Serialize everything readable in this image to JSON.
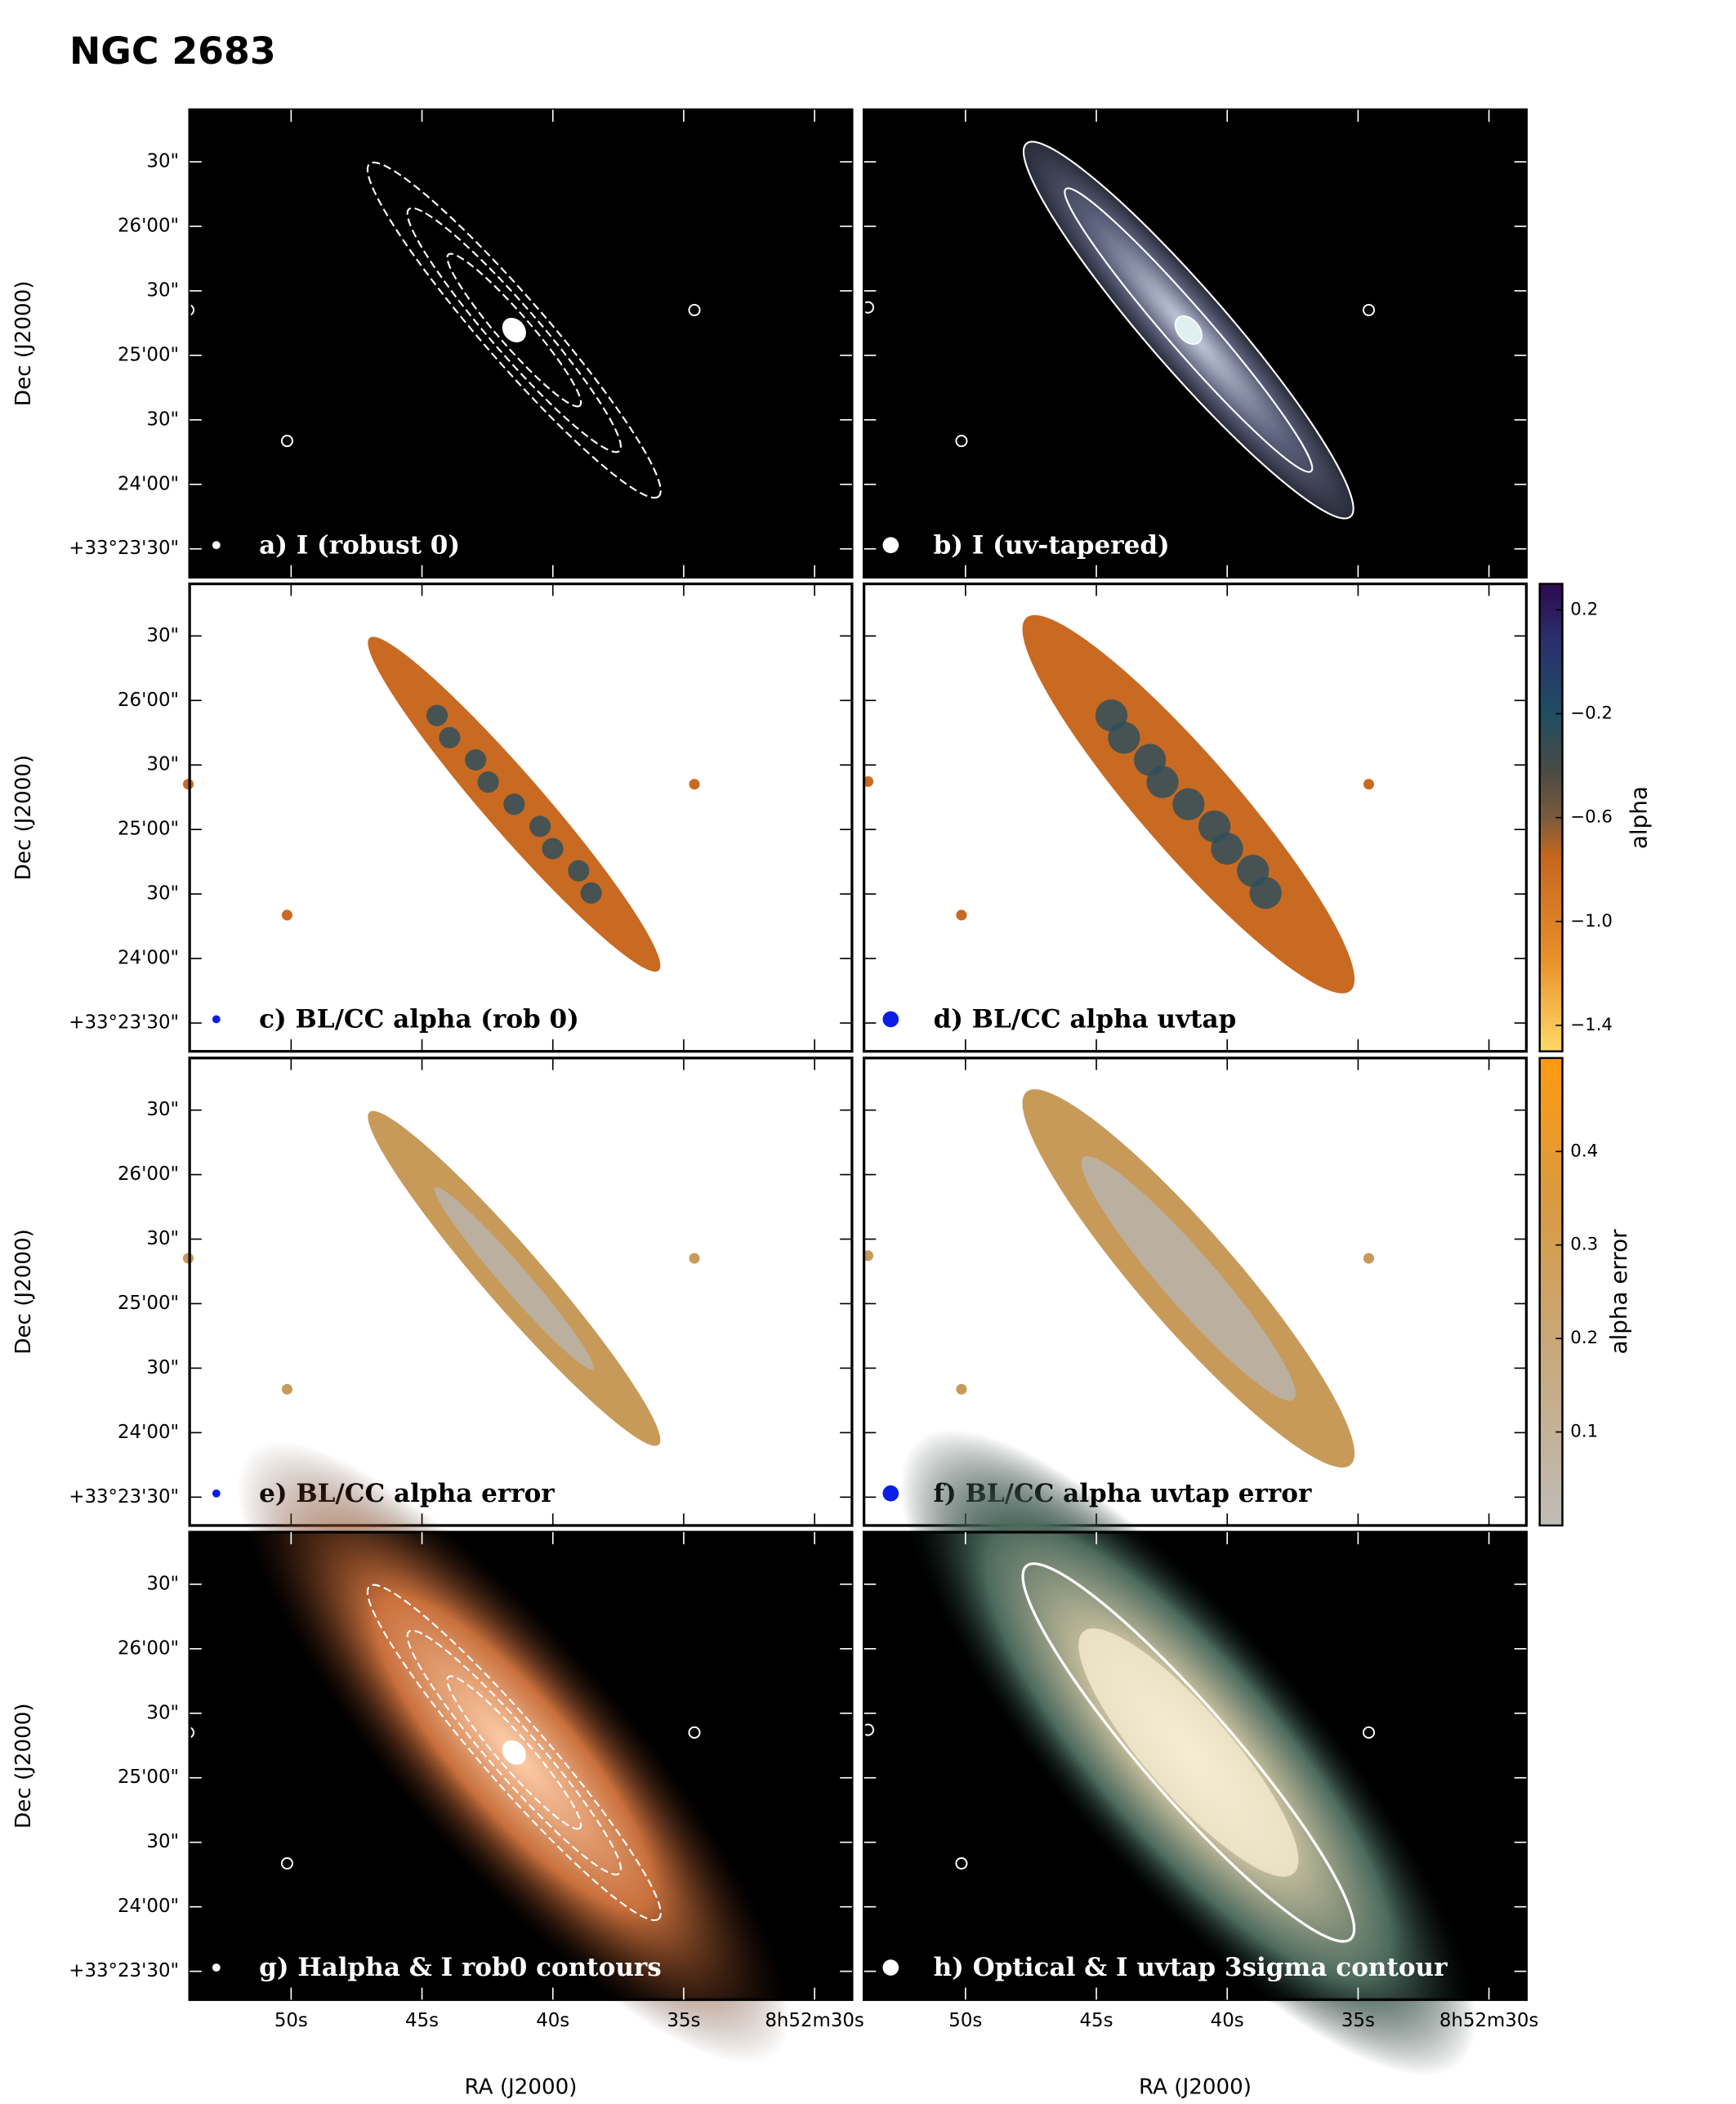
{
  "title": "NGC 2683",
  "y_axis_label": "Dec (J2000)",
  "x_axis_label": "RA (J2000)",
  "yticks": [
    "30\"",
    "26'00\"",
    "30\"",
    "25'00\"",
    "30\"",
    "24'00\"",
    "+33°23'30\""
  ],
  "xticks": [
    "50s",
    "45s",
    "40s",
    "35s",
    "8h52m30s"
  ],
  "panels": [
    {
      "label": "a) I (robust 0)"
    },
    {
      "label": "b) I (uv-tapered)"
    },
    {
      "label": "c) BL/CC alpha (rob 0)"
    },
    {
      "label": "d) BL/CC alpha uvtap"
    },
    {
      "label": "e)  BL/CC alpha error"
    },
    {
      "label": "f) BL/CC alpha uvtap error"
    },
    {
      "label": "g) Halpha & I rob0 contours"
    },
    {
      "label": "h) Optical & I uvtap 3sigma contour"
    }
  ],
  "colorbars": [
    {
      "label": "alpha",
      "lim": [
        -1.5,
        0.3
      ],
      "ticks": [
        {
          "value": 0.2,
          "label": "0.2"
        },
        {
          "value": -0.2,
          "label": "−0.2"
        },
        {
          "value": -0.6,
          "label": "−0.6"
        },
        {
          "value": -1.0,
          "label": "−1.0"
        },
        {
          "value": -1.4,
          "label": "−1.4"
        }
      ]
    },
    {
      "label": "alpha error",
      "lim": [
        0,
        0.5
      ],
      "ticks": [
        0.1,
        0.2,
        0.3,
        0.4
      ]
    }
  ]
}
